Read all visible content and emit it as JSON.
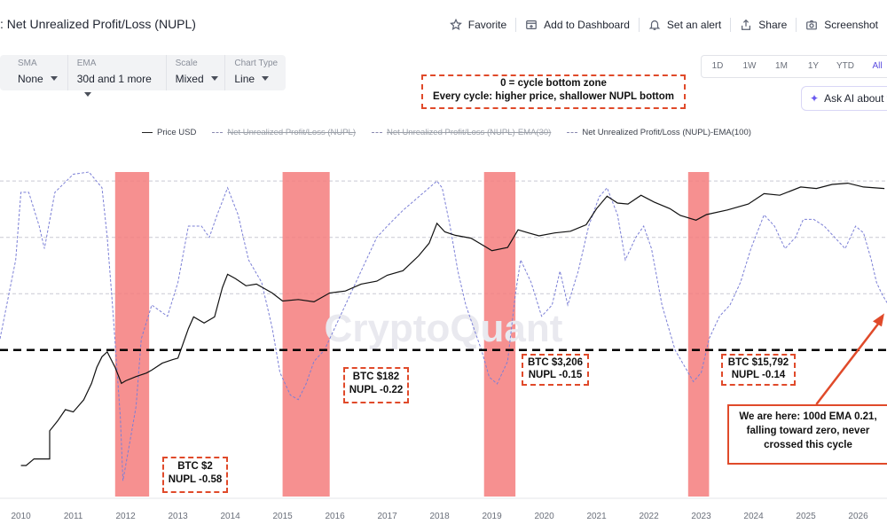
{
  "header": {
    "title": ": Net Unrealized Profit/Loss (NUPL)",
    "actions": [
      {
        "label": "Favorite",
        "icon": "star-icon"
      },
      {
        "label": "Add to Dashboard",
        "icon": "dashboard-icon"
      },
      {
        "label": "Set an alert",
        "icon": "bell-icon"
      },
      {
        "label": "Share",
        "icon": "share-icon"
      },
      {
        "label": "Screenshot",
        "icon": "camera-icon"
      }
    ]
  },
  "controls": {
    "sma": {
      "label": "SMA",
      "value": "None"
    },
    "ema": {
      "label": "EMA",
      "value": "30d and 1 more"
    },
    "scale": {
      "label": "Scale",
      "value": "Mixed"
    },
    "chart_type": {
      "label": "Chart Type",
      "value": "Line"
    }
  },
  "ranges": [
    "1D",
    "1W",
    "1M",
    "1Y",
    "YTD",
    "All"
  ],
  "active_range": "All",
  "ask_ai": "Ask AI about this",
  "annotations": {
    "top_note": [
      "0 = cycle bottom zone",
      "Every cycle: higher price, shallower NUPL bottom"
    ],
    "bottom_2011": [
      "BTC $2",
      "NUPL -0.58"
    ],
    "bottom_2015": [
      "BTC $182",
      "NUPL -0.22"
    ],
    "bottom_2018": [
      "BTC $3,206",
      "NUPL -0.15"
    ],
    "bottom_2022": [
      "BTC $15,792",
      "NUPL -0.14"
    ],
    "now": [
      "We are here: 100d EMA 0.21,",
      "falling toward zero, never",
      "crossed this cycle"
    ]
  },
  "watermark": "CryptoQuant",
  "colors": {
    "accent": "#5b4de0",
    "price_line": "#111111",
    "nupl_ema100": "#7b7fd6",
    "bottom_zone": "#f47c7c",
    "annotation_border": "#e04a2a",
    "zero_line": "#000000"
  },
  "chart_data": {
    "type": "line",
    "legend": [
      {
        "name": "Price USD",
        "style": "solid",
        "visible": true
      },
      {
        "name": "Net Unrealized Profit/Loss (NUPL)",
        "style": "dashed",
        "visible": false
      },
      {
        "name": "Net Unrealized Profit/Loss (NUPL)-EMA(30)",
        "style": "dashed",
        "visible": false
      },
      {
        "name": "Net Unrealized Profit/Loss (NUPL)-EMA(100)",
        "style": "dashed",
        "visible": true
      }
    ],
    "x_ticks": [
      "2010",
      "2011",
      "2012",
      "2013",
      "2014",
      "2015",
      "2016",
      "2017",
      "2018",
      "2019",
      "2020",
      "2021",
      "2022",
      "2023",
      "2024",
      "2025",
      "2026"
    ],
    "x_range": [
      2009.6,
      2026.55
    ],
    "nupl_range": [
      -0.65,
      0.79
    ],
    "price_log_range": [
      -2,
      5.3
    ],
    "zero_line_value": 0,
    "bottom_zones": [
      [
        2011.8,
        2012.45
      ],
      [
        2015.0,
        2015.9
      ],
      [
        2018.85,
        2019.45
      ],
      [
        2022.75,
        2023.15
      ]
    ],
    "series": [
      {
        "name": "Price USD",
        "scale": "log",
        "x": [
          2010.0,
          2010.1,
          2010.25,
          2010.55,
          2010.55,
          2010.7,
          2010.85,
          2011.0,
          2011.2,
          2011.35,
          2011.45,
          2011.55,
          2011.65,
          2011.8,
          2011.92,
          2012.0,
          2012.2,
          2012.4,
          2012.5,
          2012.7,
          2012.9,
          2013.0,
          2013.2,
          2013.3,
          2013.5,
          2013.7,
          2013.85,
          2013.95,
          2014.1,
          2014.3,
          2014.5,
          2014.8,
          2015.0,
          2015.3,
          2015.6,
          2015.9,
          2016.2,
          2016.5,
          2016.8,
          2017.0,
          2017.3,
          2017.6,
          2017.8,
          2017.95,
          2018.1,
          2018.3,
          2018.6,
          2018.9,
          2019.0,
          2019.3,
          2019.5,
          2019.7,
          2019.9,
          2020.2,
          2020.5,
          2020.8,
          2021.0,
          2021.2,
          2021.4,
          2021.6,
          2021.85,
          2022.1,
          2022.4,
          2022.6,
          2022.9,
          2023.1,
          2023.5,
          2023.9,
          2024.2,
          2024.5,
          2024.9,
          2025.2,
          2025.5,
          2025.8,
          2026.1,
          2026.5
        ],
        "values": [
          0.05,
          0.05,
          0.07,
          0.07,
          0.3,
          0.5,
          0.9,
          0.8,
          1.5,
          3.5,
          8,
          14,
          18,
          8,
          3.5,
          4,
          5,
          6,
          7,
          10,
          12,
          13,
          60,
          110,
          80,
          110,
          500,
          1000,
          800,
          550,
          600,
          380,
          250,
          270,
          240,
          380,
          420,
          600,
          700,
          950,
          1200,
          2600,
          5000,
          14000,
          9000,
          7500,
          6500,
          4000,
          3400,
          4000,
          10000,
          8500,
          7300,
          8500,
          9300,
          13000,
          30000,
          57000,
          40000,
          38000,
          60000,
          42000,
          30000,
          21000,
          16500,
          22000,
          28000,
          38000,
          65000,
          60000,
          92000,
          85000,
          105000,
          112000,
          92000,
          85000
        ]
      },
      {
        "name": "Net Unrealized Profit/Loss (NUPL)-EMA(100)",
        "x": [
          2009.6,
          2009.9,
          2010.0,
          2010.15,
          2010.35,
          2010.45,
          2010.65,
          2011.0,
          2011.3,
          2011.55,
          2011.65,
          2011.75,
          2011.9,
          2011.95,
          2012.05,
          2012.2,
          2012.3,
          2012.5,
          2012.8,
          2013.0,
          2013.2,
          2013.45,
          2013.6,
          2013.75,
          2013.95,
          2014.15,
          2014.35,
          2014.6,
          2014.8,
          2014.95,
          2015.15,
          2015.3,
          2015.45,
          2015.6,
          2015.8,
          2016.0,
          2016.4,
          2016.8,
          2017.0,
          2017.3,
          2017.6,
          2017.8,
          2017.95,
          2018.05,
          2018.2,
          2018.35,
          2018.5,
          2018.65,
          2018.8,
          2018.95,
          2019.1,
          2019.3,
          2019.45,
          2019.55,
          2019.75,
          2019.95,
          2020.15,
          2020.3,
          2020.45,
          2020.65,
          2020.85,
          2021.05,
          2021.2,
          2021.4,
          2021.55,
          2021.75,
          2021.9,
          2022.05,
          2022.25,
          2022.5,
          2022.7,
          2022.85,
          2023.0,
          2023.15,
          2023.35,
          2023.55,
          2023.75,
          2023.95,
          2024.2,
          2024.4,
          2024.6,
          2024.8,
          2024.95,
          2025.15,
          2025.35,
          2025.55,
          2025.75,
          2025.95,
          2026.1,
          2026.25,
          2026.35,
          2026.45,
          2026.55
        ],
        "values": [
          0.05,
          0.4,
          0.7,
          0.7,
          0.55,
          0.45,
          0.7,
          0.78,
          0.79,
          0.72,
          0.5,
          0.2,
          -0.3,
          -0.58,
          -0.45,
          -0.25,
          0.05,
          0.2,
          0.15,
          0.3,
          0.55,
          0.55,
          0.5,
          0.6,
          0.72,
          0.6,
          0.4,
          0.3,
          0.1,
          -0.1,
          -0.2,
          -0.22,
          -0.15,
          -0.05,
          0.0,
          0.1,
          0.3,
          0.5,
          0.55,
          0.62,
          0.68,
          0.72,
          0.75,
          0.72,
          0.55,
          0.35,
          0.2,
          0.1,
          0.0,
          -0.12,
          -0.15,
          -0.05,
          0.25,
          0.4,
          0.3,
          0.15,
          0.2,
          0.35,
          0.2,
          0.35,
          0.55,
          0.68,
          0.72,
          0.6,
          0.4,
          0.5,
          0.55,
          0.45,
          0.2,
          0.0,
          -0.08,
          -0.14,
          -0.1,
          0.05,
          0.15,
          0.2,
          0.3,
          0.45,
          0.6,
          0.55,
          0.45,
          0.5,
          0.58,
          0.58,
          0.55,
          0.5,
          0.45,
          0.55,
          0.52,
          0.4,
          0.3,
          0.25,
          0.21
        ]
      }
    ]
  }
}
